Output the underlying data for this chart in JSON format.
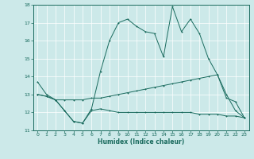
{
  "xlabel": "Humidex (Indice chaleur)",
  "xlim": [
    -0.5,
    23.5
  ],
  "ylim": [
    11,
    18
  ],
  "yticks": [
    11,
    12,
    13,
    14,
    15,
    16,
    17,
    18
  ],
  "xticks": [
    0,
    1,
    2,
    3,
    4,
    5,
    6,
    7,
    8,
    9,
    10,
    11,
    12,
    13,
    14,
    15,
    16,
    17,
    18,
    19,
    20,
    21,
    22,
    23
  ],
  "bg_color": "#cce9e9",
  "line_color": "#1a6b5e",
  "grid_color": "#b8d8d8",
  "line1_x": [
    0,
    1,
    2,
    3,
    4,
    5,
    6,
    7,
    8,
    9,
    10,
    11,
    12,
    13,
    14,
    15,
    16,
    17,
    18,
    19,
    20,
    21,
    22,
    23
  ],
  "line1_y": [
    13.7,
    13.0,
    12.7,
    12.1,
    11.5,
    11.4,
    12.2,
    14.3,
    16.0,
    17.0,
    17.2,
    16.8,
    16.5,
    16.4,
    15.1,
    17.9,
    16.5,
    17.2,
    16.4,
    15.0,
    14.1,
    13.0,
    12.1,
    11.7
  ],
  "line2_x": [
    0,
    1,
    2,
    3,
    4,
    5,
    6,
    7,
    8,
    9,
    10,
    11,
    12,
    13,
    14,
    15,
    16,
    17,
    18,
    19,
    20,
    21,
    22,
    23
  ],
  "line2_y": [
    13.0,
    12.9,
    12.7,
    12.7,
    12.7,
    12.7,
    12.8,
    12.8,
    12.9,
    13.0,
    13.1,
    13.2,
    13.3,
    13.4,
    13.5,
    13.6,
    13.7,
    13.8,
    13.9,
    14.0,
    14.1,
    12.8,
    12.6,
    11.7
  ],
  "line3_x": [
    0,
    1,
    2,
    3,
    4,
    5,
    6,
    7,
    8,
    9,
    10,
    11,
    12,
    13,
    14,
    15,
    16,
    17,
    18,
    19,
    20,
    21,
    22,
    23
  ],
  "line3_y": [
    13.0,
    12.9,
    12.7,
    12.1,
    11.5,
    11.4,
    12.1,
    12.2,
    12.1,
    12.0,
    12.0,
    12.0,
    12.0,
    12.0,
    12.0,
    12.0,
    12.0,
    12.0,
    11.9,
    11.9,
    11.9,
    11.8,
    11.8,
    11.7
  ]
}
